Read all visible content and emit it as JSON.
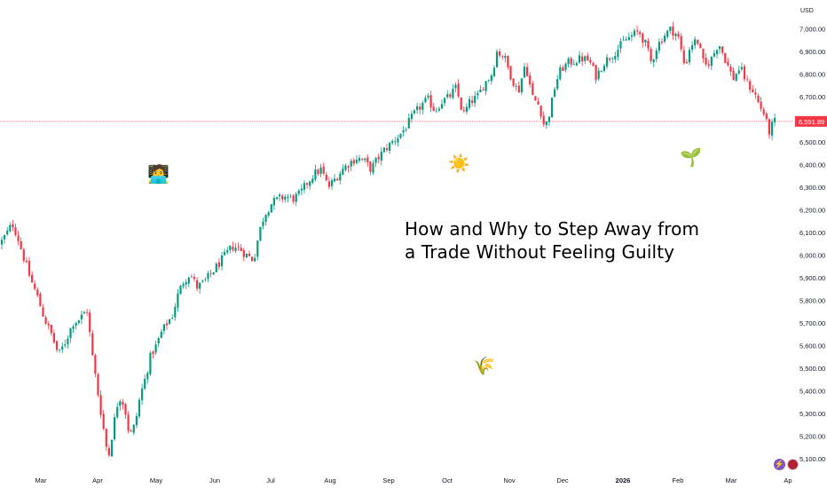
{
  "chart_data": {
    "type": "candlestick",
    "currency": "USD",
    "ylim": [
      5050,
      7050
    ],
    "yticks": [
      5100,
      5200,
      5300,
      5400,
      5500,
      5600,
      5700,
      5800,
      5900,
      6000,
      6100,
      6200,
      6300,
      6400,
      6500,
      6600,
      6700,
      6800,
      6900,
      7000
    ],
    "ytick_labels": [
      "5,100.00",
      "5,200.00",
      "5,300.00",
      "5,400.00",
      "5,500.00",
      "5,600.00",
      "5,700.00",
      "5,800.00",
      "5,900.00",
      "6,000.00",
      "6,100.00",
      "6,200.00",
      "6,300.00",
      "6,400.00",
      "6,500.00",
      "6,600.00",
      "6,700.00",
      "6,800.00",
      "6,900.00",
      "7,000.00"
    ],
    "xticks": [
      "Mar",
      "Apr",
      "May",
      "Jun",
      "Jul",
      "Aug",
      "Sep",
      "Oct",
      "Nov",
      "Dec",
      "2026",
      "Feb",
      "Mar",
      "Ap"
    ],
    "last_price": 6591.89,
    "last_price_label": "6,591.89",
    "anchors": [
      [
        0,
        6050
      ],
      [
        8,
        6100
      ],
      [
        14,
        6140
      ],
      [
        20,
        6080
      ],
      [
        26,
        6000
      ],
      [
        34,
        5900
      ],
      [
        42,
        5820
      ],
      [
        50,
        5720
      ],
      [
        58,
        5650
      ],
      [
        66,
        5560
      ],
      [
        74,
        5620
      ],
      [
        82,
        5700
      ],
      [
        90,
        5720
      ],
      [
        98,
        5760
      ],
      [
        104,
        5560
      ],
      [
        110,
        5400
      ],
      [
        116,
        5250
      ],
      [
        122,
        5100
      ],
      [
        128,
        5250
      ],
      [
        134,
        5380
      ],
      [
        140,
        5340
      ],
      [
        146,
        5200
      ],
      [
        152,
        5250
      ],
      [
        158,
        5380
      ],
      [
        164,
        5460
      ],
      [
        170,
        5560
      ],
      [
        176,
        5600
      ],
      [
        182,
        5660
      ],
      [
        188,
        5700
      ],
      [
        194,
        5730
      ],
      [
        200,
        5820
      ],
      [
        206,
        5880
      ],
      [
        214,
        5920
      ],
      [
        222,
        5860
      ],
      [
        230,
        5880
      ],
      [
        238,
        5920
      ],
      [
        246,
        5960
      ],
      [
        254,
        6000
      ],
      [
        262,
        6040
      ],
      [
        270,
        6030
      ],
      [
        278,
        6000
      ],
      [
        286,
        5980
      ],
      [
        292,
        6100
      ],
      [
        298,
        6180
      ],
      [
        306,
        6230
      ],
      [
        314,
        6250
      ],
      [
        322,
        6260
      ],
      [
        330,
        6250
      ],
      [
        338,
        6270
      ],
      [
        346,
        6320
      ],
      [
        354,
        6360
      ],
      [
        362,
        6380
      ],
      [
        370,
        6300
      ],
      [
        378,
        6340
      ],
      [
        386,
        6380
      ],
      [
        394,
        6410
      ],
      [
        402,
        6430
      ],
      [
        410,
        6420
      ],
      [
        418,
        6380
      ],
      [
        426,
        6430
      ],
      [
        434,
        6470
      ],
      [
        442,
        6500
      ],
      [
        450,
        6530
      ],
      [
        458,
        6570
      ],
      [
        466,
        6620
      ],
      [
        474,
        6660
      ],
      [
        482,
        6690
      ],
      [
        490,
        6640
      ],
      [
        498,
        6680
      ],
      [
        506,
        6700
      ],
      [
        514,
        6740
      ],
      [
        522,
        6620
      ],
      [
        530,
        6680
      ],
      [
        538,
        6700
      ],
      [
        546,
        6760
      ],
      [
        554,
        6800
      ],
      [
        560,
        6900
      ],
      [
        568,
        6880
      ],
      [
        576,
        6790
      ],
      [
        584,
        6720
      ],
      [
        592,
        6850
      ],
      [
        600,
        6700
      ],
      [
        608,
        6660
      ],
      [
        614,
        6560
      ],
      [
        620,
        6640
      ],
      [
        626,
        6760
      ],
      [
        632,
        6820
      ],
      [
        640,
        6850
      ],
      [
        648,
        6860
      ],
      [
        656,
        6870
      ],
      [
        664,
        6860
      ],
      [
        672,
        6790
      ],
      [
        680,
        6850
      ],
      [
        688,
        6880
      ],
      [
        696,
        6910
      ],
      [
        704,
        6950
      ],
      [
        712,
        6970
      ],
      [
        720,
        6990
      ],
      [
        728,
        6930
      ],
      [
        734,
        6850
      ],
      [
        740,
        6920
      ],
      [
        748,
        6970
      ],
      [
        756,
        7000
      ],
      [
        764,
        6970
      ],
      [
        772,
        6830
      ],
      [
        778,
        6930
      ],
      [
        786,
        6950
      ],
      [
        794,
        6830
      ],
      [
        802,
        6870
      ],
      [
        810,
        6940
      ],
      [
        818,
        6860
      ],
      [
        826,
        6780
      ],
      [
        834,
        6830
      ],
      [
        842,
        6760
      ],
      [
        850,
        6720
      ],
      [
        856,
        6660
      ],
      [
        862,
        6620
      ],
      [
        866,
        6540
      ],
      [
        872,
        6590
      ],
      [
        876,
        6591.89
      ]
    ]
  }
}
